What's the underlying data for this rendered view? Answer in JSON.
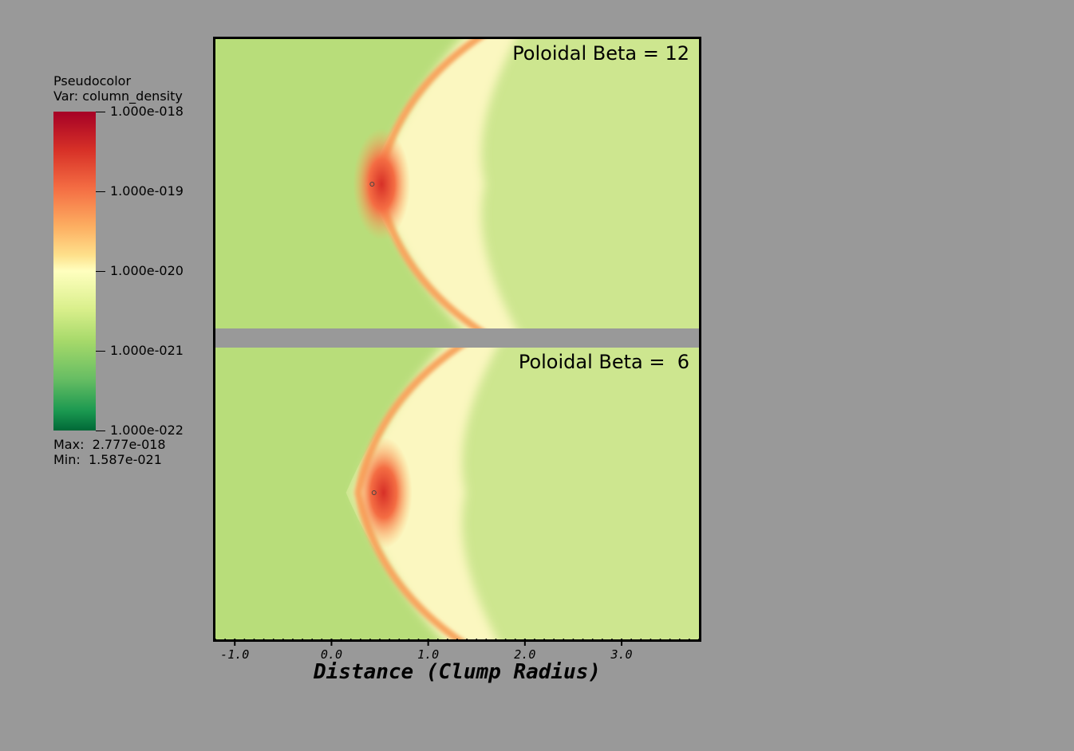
{
  "legend": {
    "title": "Pseudocolor\nVar: column_density",
    "tick_labels": [
      "1.000e-018",
      "1.000e-019",
      "1.000e-020",
      "1.000e-021",
      "1.000e-022"
    ],
    "max_label": "Max:  2.777e-018",
    "min_label": "Min:  1.587e-021",
    "colors": [
      "#a50026",
      "#d73027",
      "#f46d43",
      "#fdae61",
      "#ffffbf",
      "#a6d96a",
      "#1a9850",
      "#006837"
    ]
  },
  "chart_data": {
    "type": "heatmap",
    "variable": "column_density",
    "colorbar_range": [
      1e-22,
      1e-18
    ],
    "colorbar_scale": "log",
    "data_max": 2.777e-18,
    "data_min": 1.587e-21,
    "xlabel": "Distance (Clump Radius)",
    "xticks": [
      -1.0,
      0.0,
      1.0,
      2.0,
      3.0
    ],
    "xtick_labels": [
      "-1.0",
      "0.0",
      "1.0",
      "2.0",
      "3.0"
    ],
    "xlim": [
      -1.2,
      3.8
    ],
    "panels": [
      {
        "title": "Poloidal Beta = 12",
        "clump_x": 0.42,
        "shock_apex_x": 0.35
      },
      {
        "title": "Poloidal Beta =  6",
        "clump_x": 0.44,
        "shock_apex_x": 0.15
      }
    ]
  }
}
